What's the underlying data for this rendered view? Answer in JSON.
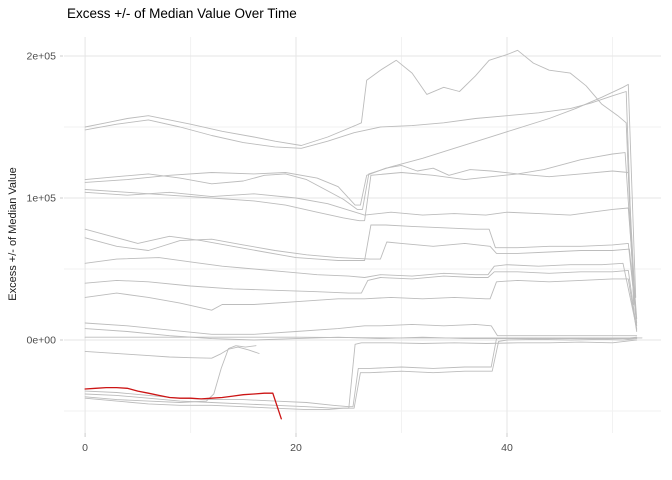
{
  "chart_data": {
    "type": "line",
    "title": "Excess +/- of Median Value Over Time",
    "xlabel": "",
    "ylabel": "Excess +/- of Median Value",
    "legend": "none",
    "grid": "major+minor",
    "background": "#ffffff",
    "xlim": [
      -2,
      54.6
    ],
    "ylim": [
      -65500,
      213400
    ],
    "x_ticks": [
      {
        "value": 0,
        "label": "0"
      },
      {
        "value": 20,
        "label": "20"
      },
      {
        "value": 40,
        "label": "40"
      }
    ],
    "x_minor_ticks": [
      10,
      30,
      50
    ],
    "y_ticks": [
      {
        "value": 0,
        "label": "0e+00"
      },
      {
        "value": 100000,
        "label": "1e+05"
      },
      {
        "value": 200000,
        "label": "2e+05"
      }
    ],
    "y_minor_ticks": [
      -50000,
      50000,
      150000
    ],
    "colors": {
      "highlight_line": "#cc1414",
      "gray_line": "#bcbcbc",
      "grid_major": "#e5e5e5",
      "grid_minor": "#f2f2f2",
      "tick_label": "#4d4d4d",
      "tick_mark": "#cccccc",
      "title_text": "#000000"
    },
    "series": [
      {
        "name": "gray-1",
        "role": "background",
        "x": [
          0,
          2,
          4,
          6,
          8,
          10,
          13,
          16,
          18,
          20.5,
          23,
          25.6,
          26.2,
          26.7,
          28,
          29.5,
          31,
          32.4,
          34,
          35.5,
          37,
          38.3,
          40,
          41,
          42.5,
          44,
          46,
          47.5,
          49,
          50.5,
          51.3,
          52
        ],
        "y": [
          150000,
          153000,
          156000,
          158000,
          155000,
          152000,
          147000,
          143000,
          140000,
          137000,
          143000,
          151000,
          153000,
          183000,
          190000,
          197000,
          188000,
          173000,
          178000,
          175000,
          186000,
          197000,
          201000,
          204000,
          195000,
          190000,
          188000,
          179000,
          166000,
          158000,
          153000,
          28000
        ]
      },
      {
        "name": "gray-2",
        "role": "background",
        "x": [
          0,
          3,
          6,
          9,
          12,
          15,
          18,
          20.5,
          23,
          25.5,
          28,
          31,
          34,
          37,
          40,
          43,
          46,
          48,
          50,
          51.3,
          52
        ],
        "y": [
          148000,
          152000,
          155000,
          150000,
          144000,
          139000,
          136000,
          135000,
          140000,
          146000,
          150000,
          151000,
          153000,
          156000,
          158000,
          160000,
          163000,
          167000,
          172000,
          175000,
          25000
        ]
      },
      {
        "name": "gray-3",
        "role": "background",
        "x": [
          0,
          3,
          6,
          9,
          12,
          15,
          17,
          19,
          21,
          23,
          24.5,
          25.8,
          26.3,
          26.9,
          29,
          32,
          35,
          38,
          41,
          44,
          46.5,
          49,
          51,
          51.5,
          52.2
        ],
        "y": [
          113000,
          115000,
          117000,
          114000,
          110000,
          112000,
          116000,
          117000,
          113000,
          105000,
          99000,
          92000,
          92000,
          117000,
          122000,
          128000,
          135000,
          142000,
          149000,
          156000,
          163000,
          171000,
          178000,
          180000,
          30000
        ]
      },
      {
        "name": "gray-4",
        "role": "background",
        "x": [
          0,
          4,
          8,
          12,
          16,
          19,
          22,
          24,
          25.6,
          26.1,
          26.7,
          28.5,
          30,
          31.5,
          33,
          34.5,
          36.5,
          38.5,
          41,
          44,
          47,
          50,
          51.5,
          52.2
        ],
        "y": [
          111000,
          113000,
          116000,
          118000,
          117000,
          118000,
          114000,
          108000,
          95000,
          95000,
          116000,
          121000,
          123000,
          119000,
          121000,
          116000,
          120000,
          119000,
          117000,
          115000,
          117000,
          119000,
          118000,
          20000
        ]
      },
      {
        "name": "gray-5",
        "role": "background",
        "x": [
          0,
          4,
          8,
          12,
          16,
          19,
          22,
          24.5,
          26,
          26.5,
          27.1,
          30,
          33,
          36,
          38.5,
          41,
          43.5,
          45.5,
          47,
          48.5,
          50,
          51.2,
          52.2
        ],
        "y": [
          106000,
          104000,
          102000,
          100000,
          98000,
          95000,
          90000,
          86000,
          84000,
          84000,
          116000,
          118000,
          116000,
          113000,
          115000,
          117000,
          120000,
          124000,
          127000,
          129000,
          131000,
          132000,
          18000
        ]
      },
      {
        "name": "gray-6",
        "role": "background",
        "x": [
          0,
          4,
          8,
          12,
          16,
          20,
          23,
          26.5,
          29,
          32,
          35,
          38,
          40,
          43,
          46,
          48,
          50,
          51.5,
          52.3
        ],
        "y": [
          104000,
          102000,
          104000,
          101000,
          103000,
          100000,
          96000,
          88000,
          90000,
          88000,
          89000,
          88000,
          90000,
          89000,
          88000,
          90000,
          92000,
          93000,
          15000
        ]
      },
      {
        "name": "gray-7",
        "role": "background",
        "x": [
          0,
          2,
          5,
          8,
          11,
          14,
          17,
          20,
          22,
          24,
          26,
          26.5,
          27.1,
          28.5,
          31,
          34,
          37,
          38.3,
          38.9,
          41,
          44,
          47,
          50,
          51.5,
          52.3
        ],
        "y": [
          78000,
          74000,
          68000,
          73000,
          70000,
          66000,
          62000,
          58000,
          57000,
          56000,
          56000,
          56000,
          81000,
          81000,
          80000,
          79000,
          78000,
          78000,
          65000,
          65000,
          66000,
          66000,
          67000,
          68000,
          12000
        ]
      },
      {
        "name": "gray-8",
        "role": "background",
        "x": [
          0,
          3,
          6,
          9,
          12,
          15,
          18,
          21,
          24,
          27,
          28,
          28.6,
          30,
          33,
          36,
          38.4,
          39,
          41,
          44,
          47,
          50,
          51.6,
          52.3
        ],
        "y": [
          72000,
          66000,
          63000,
          70000,
          71000,
          67000,
          63000,
          60000,
          58000,
          57000,
          57000,
          69000,
          68000,
          66000,
          68000,
          66000,
          61000,
          61000,
          62000,
          63000,
          63000,
          64000,
          10000
        ]
      },
      {
        "name": "gray-9",
        "role": "background",
        "x": [
          0,
          3,
          7,
          10,
          13,
          16,
          19,
          22,
          25,
          26.5,
          28,
          31,
          34,
          37,
          38.2,
          38.8,
          40,
          43,
          46,
          49,
          51,
          52.3
        ],
        "y": [
          54000,
          57000,
          58000,
          55000,
          52000,
          50000,
          48000,
          46000,
          45000,
          44000,
          46000,
          45000,
          47000,
          46000,
          46000,
          52000,
          53000,
          52000,
          53000,
          53000,
          54000,
          8000
        ]
      },
      {
        "name": "gray-10",
        "role": "background",
        "x": [
          0,
          3,
          6,
          10,
          14,
          18,
          22,
          25,
          26.2,
          26.8,
          28,
          31,
          34,
          37,
          38.2,
          38.8,
          41,
          44,
          47,
          50,
          51.5,
          52.3
        ],
        "y": [
          40000,
          42000,
          41000,
          38000,
          36000,
          35000,
          34000,
          33000,
          33000,
          42000,
          44000,
          43000,
          45000,
          44000,
          44000,
          48000,
          48000,
          47000,
          48000,
          48000,
          49000,
          7000
        ]
      },
      {
        "name": "gray-11",
        "role": "background",
        "x": [
          0,
          3,
          6,
          9,
          12,
          13,
          16,
          20,
          24,
          26.5,
          29,
          32,
          35,
          38,
          38.4,
          39,
          41,
          44,
          47,
          50,
          51.5,
          52.3
        ],
        "y": [
          30000,
          33000,
          30000,
          26000,
          21000,
          25000,
          25000,
          27000,
          29000,
          29000,
          30000,
          29000,
          30000,
          29000,
          29000,
          41000,
          42000,
          41000,
          42000,
          43000,
          43000,
          6000
        ]
      },
      {
        "name": "gray-12",
        "role": "background",
        "x": [
          0,
          4,
          8,
          12,
          16,
          20,
          24,
          26.5,
          28,
          31,
          34,
          37,
          38.5,
          39.1,
          42,
          46,
          50,
          51.6,
          52.3
        ],
        "y": [
          12000,
          10000,
          7000,
          4000,
          4000,
          6000,
          8000,
          10000,
          10000,
          11000,
          10000,
          11000,
          10000,
          3000,
          3000,
          3000,
          3000,
          3000,
          3000
        ]
      },
      {
        "name": "gray-13",
        "role": "background",
        "x": [
          0,
          4,
          8,
          12,
          16,
          20,
          24,
          28,
          32,
          36,
          40,
          44,
          48,
          52
        ],
        "y": [
          8000,
          6000,
          3000,
          1000,
          0,
          1000,
          2000,
          1000,
          2000,
          1000,
          1000,
          1000,
          1000,
          1000
        ]
      },
      {
        "name": "gray-14",
        "role": "background",
        "x": [
          0,
          10,
          20,
          30,
          40,
          50,
          52.8
        ],
        "y": [
          2000,
          2000,
          2000,
          1500,
          1500,
          1500,
          1500
        ]
      },
      {
        "name": "gray-15",
        "role": "background",
        "x": [
          0,
          2,
          4,
          6,
          8,
          10,
          12,
          12.8,
          13.6,
          14.5,
          15.5,
          16.5
        ],
        "y": [
          -8000,
          -9000,
          -10000,
          -11000,
          -12000,
          -12500,
          -12800,
          -10000,
          -6500,
          -5000,
          -7000,
          -9500
        ]
      },
      {
        "name": "gray-16",
        "role": "background",
        "x": [
          0,
          3,
          6,
          9,
          11.5,
          12.2,
          12.9,
          13.6,
          14.3,
          15.2,
          16.2
        ],
        "y": [
          -40000,
          -42000,
          -43000,
          -44000,
          -43000,
          -38000,
          -20000,
          -6000,
          -4000,
          -5000,
          -4000
        ]
      },
      {
        "name": "gray-17",
        "role": "background",
        "x": [
          0,
          3,
          6,
          9,
          12,
          15,
          18,
          21,
          23.5,
          25,
          25.4,
          25.9,
          27,
          30,
          33,
          36,
          38,
          38.5,
          39,
          40,
          43,
          46,
          49,
          51,
          52.3
        ],
        "y": [
          -36000,
          -37000,
          -39000,
          -41000,
          -42000,
          -42000,
          -43000,
          -44000,
          -46000,
          -47000,
          -47000,
          -20000,
          -20000,
          -19000,
          -20000,
          -19000,
          -19000,
          -19000,
          1000,
          1000,
          1500,
          1000,
          1500,
          1000,
          2000
        ]
      },
      {
        "name": "gray-18",
        "role": "background",
        "x": [
          0,
          3,
          6,
          9,
          12,
          15,
          18,
          21,
          23.5,
          25,
          25.5,
          26.1,
          27,
          30,
          33,
          36,
          38,
          38.6,
          39.2,
          40,
          43,
          46,
          49,
          51,
          52.3
        ],
        "y": [
          -38000,
          -39000,
          -41000,
          -43000,
          -44000,
          -45000,
          -46000,
          -47000,
          -48000,
          -48000,
          -48000,
          -23000,
          -23000,
          -22000,
          -23000,
          -22000,
          -22000,
          -22000,
          -1000,
          0,
          500,
          0,
          500,
          0,
          1000
        ]
      },
      {
        "name": "gray-19",
        "role": "background",
        "x": [
          0,
          3,
          6,
          9,
          12,
          15,
          18,
          21,
          23,
          24.5,
          25,
          25.6,
          26.2,
          29,
          32,
          35,
          38,
          41,
          44,
          47,
          50,
          52.3
        ],
        "y": [
          -41000,
          -43000,
          -45000,
          -46000,
          -46000,
          -47000,
          -48000,
          -49000,
          -49000,
          -48000,
          -48000,
          -3000,
          -2000,
          -2000,
          -2500,
          -2000,
          -2500,
          -2000,
          -2000,
          -1500,
          -2000,
          0
        ]
      },
      {
        "name": "highlight-red",
        "role": "highlight",
        "x": [
          0,
          1,
          2,
          3,
          4,
          5,
          6,
          7,
          8,
          9,
          10,
          11,
          12,
          13,
          14,
          15,
          16,
          17,
          17.8,
          18.6
        ],
        "y": [
          -34500,
          -34000,
          -33500,
          -33500,
          -34000,
          -36000,
          -37500,
          -39000,
          -40500,
          -41000,
          -41000,
          -41500,
          -41000,
          -40500,
          -39500,
          -38500,
          -38000,
          -37500,
          -37500,
          -55500
        ]
      }
    ]
  }
}
